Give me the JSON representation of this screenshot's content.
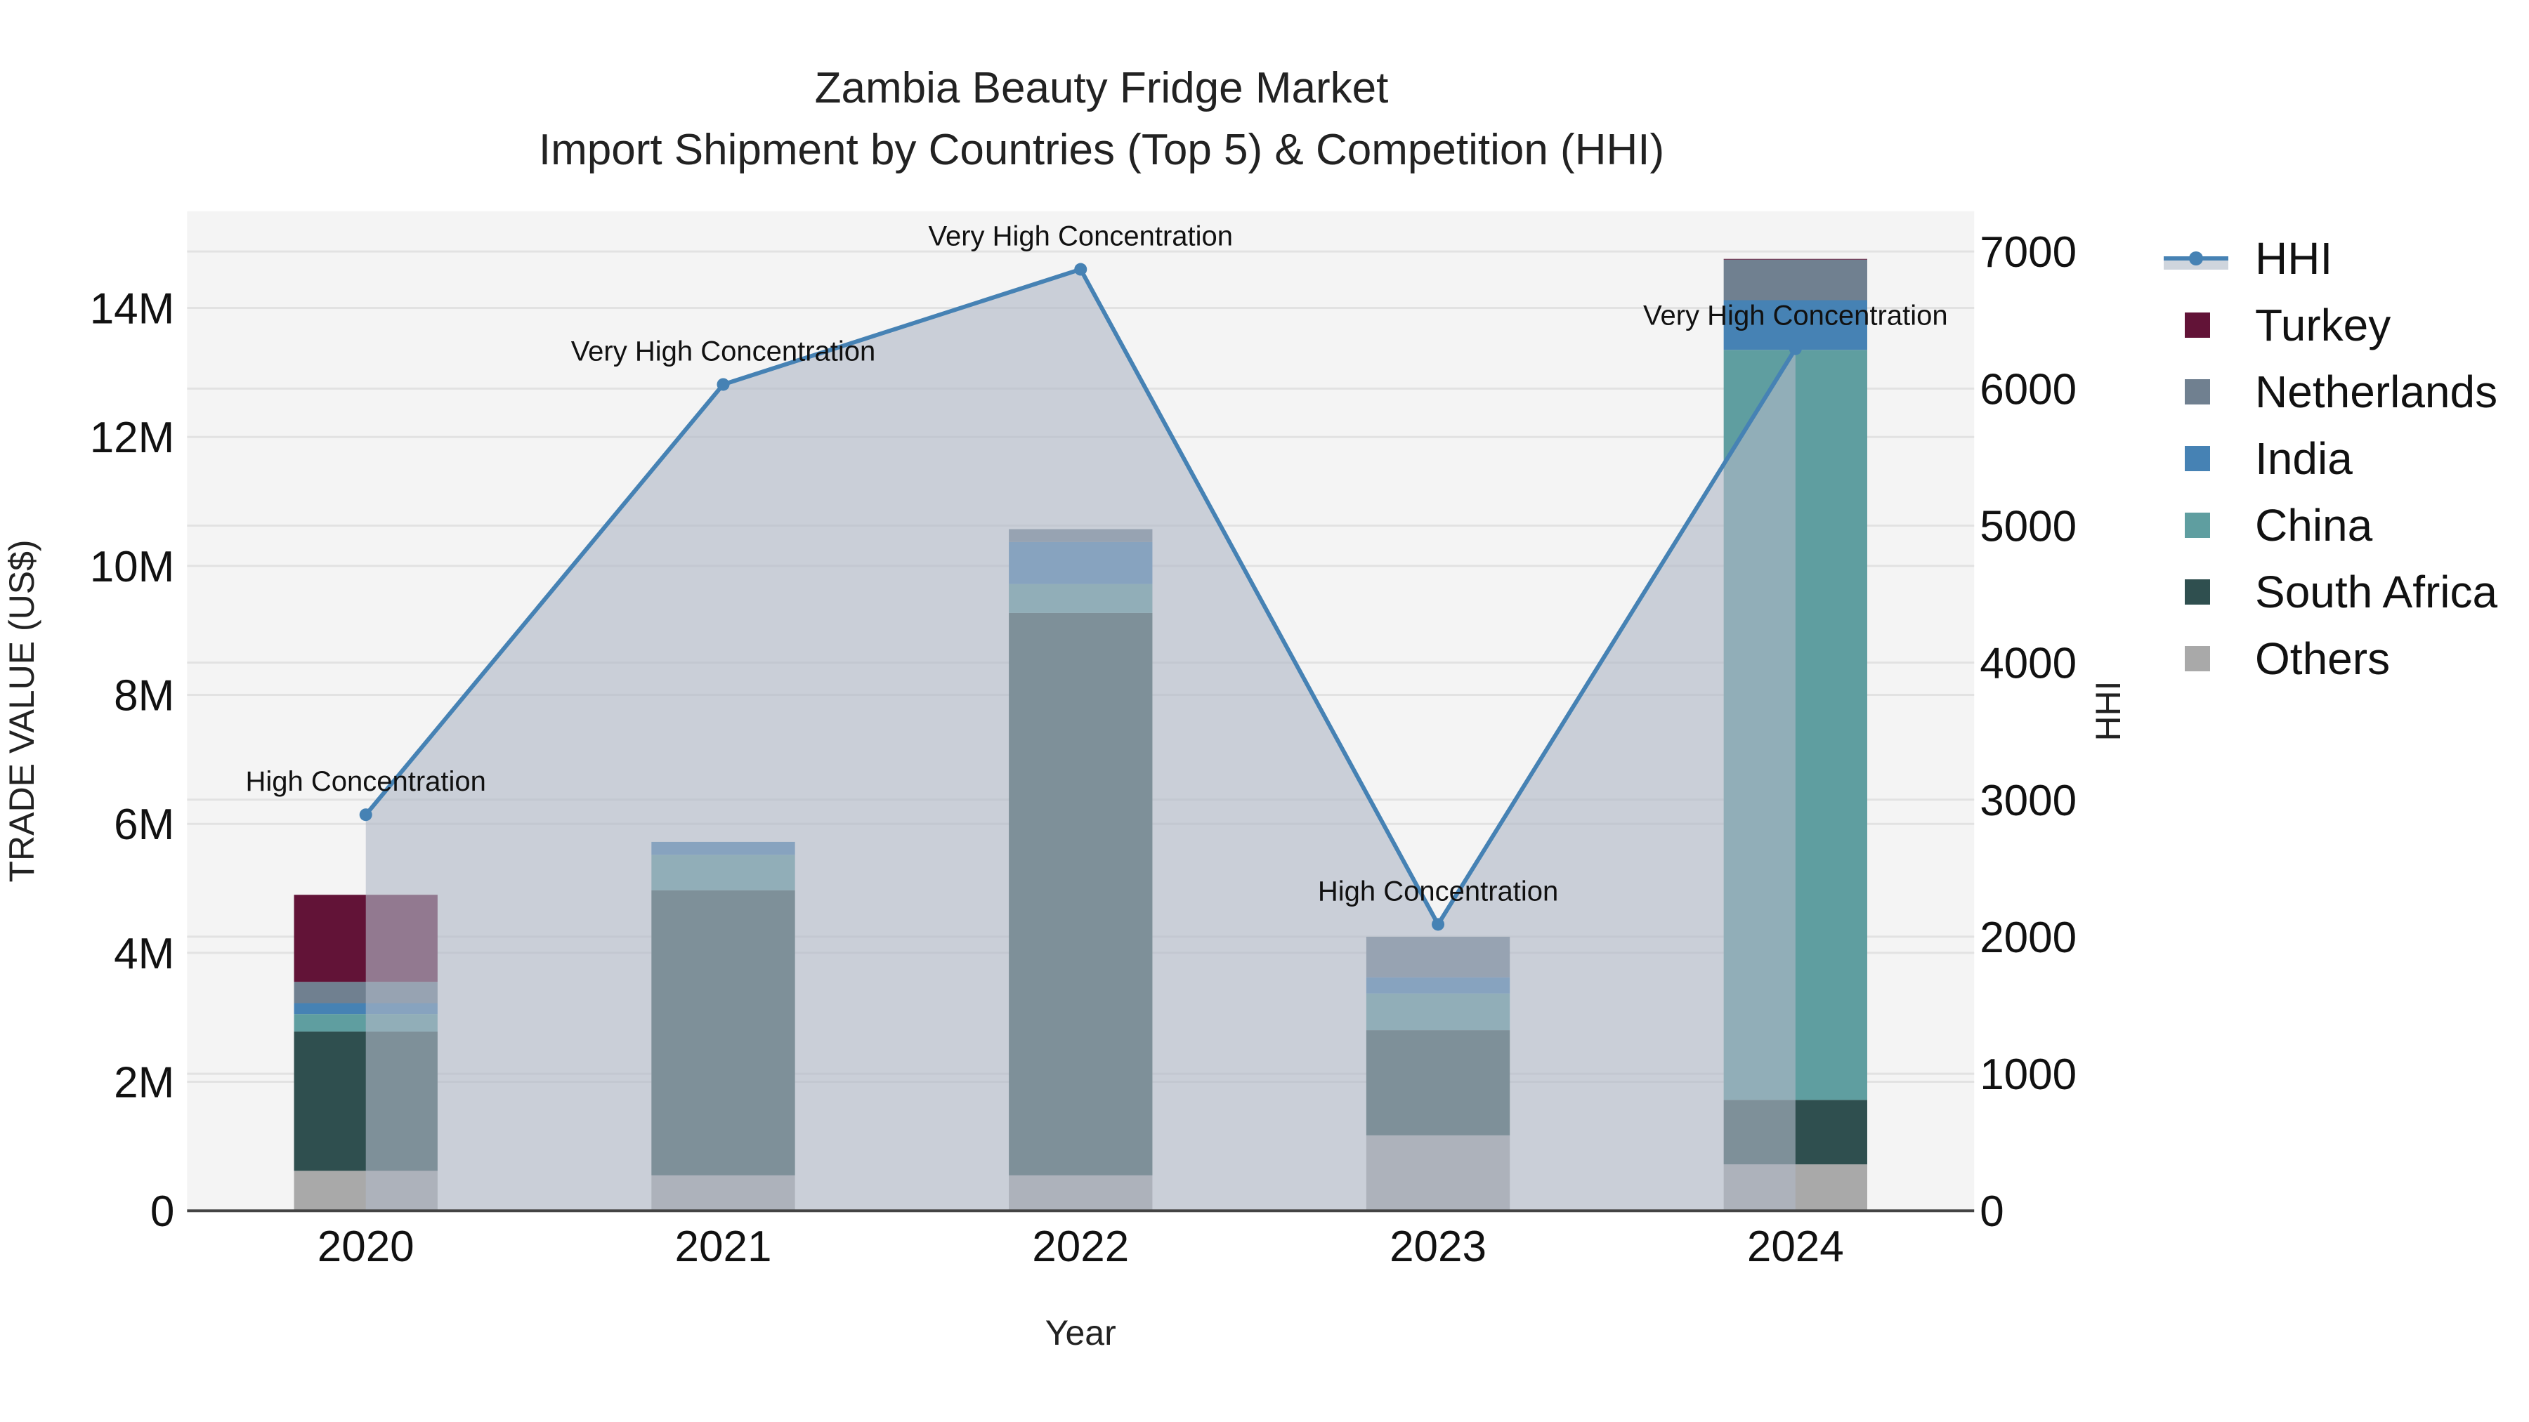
{
  "title": {
    "line1": "Zambia Beauty Fridge Market",
    "line2": "Import Shipment by Countries (Top 5) & Competition (HHI)"
  },
  "axes": {
    "x_title": "Year",
    "y_left_title": "TRADE VALUE (US$)",
    "y_right_title": "HHI",
    "y_left_ticks": [
      "0",
      "2M",
      "4M",
      "6M",
      "8M",
      "10M",
      "12M",
      "14M"
    ],
    "y_right_ticks": [
      "0",
      "1000",
      "2000",
      "3000",
      "4000",
      "5000",
      "6000",
      "7000"
    ],
    "x_ticks": [
      "2020",
      "2021",
      "2022",
      "2023",
      "2024"
    ]
  },
  "legend": [
    {
      "name": "HHI",
      "type": "line",
      "color": "#4682b4"
    },
    {
      "name": "Turkey",
      "type": "bar",
      "color": "#621337"
    },
    {
      "name": "Netherlands",
      "type": "bar",
      "color": "#708090"
    },
    {
      "name": "India",
      "type": "bar",
      "color": "#4682b4"
    },
    {
      "name": "China",
      "type": "bar",
      "color": "#5f9ea0"
    },
    {
      "name": "South Africa",
      "type": "bar",
      "color": "#2f4f4f"
    },
    {
      "name": "Others",
      "type": "bar",
      "color": "#a9a9a9"
    }
  ],
  "colors": {
    "plot_bg": "#f4f4f4",
    "grid": "#e2e2e2",
    "hhi_line": "#4682b4",
    "hhi_fill": "rgba(176,184,198,0.62)"
  },
  "chart_data": {
    "type": "bar",
    "title": "Zambia Beauty Fridge Market — Import Shipment by Countries (Top 5) & Competition (HHI)",
    "xlabel": "Year",
    "ylabel": "TRADE VALUE (US$)",
    "y2label": "HHI",
    "ylim": [
      0,
      15000000
    ],
    "y2lim": [
      0,
      7300
    ],
    "barmode": "stack",
    "categories": [
      "2020",
      "2021",
      "2022",
      "2023",
      "2024"
    ],
    "series": [
      {
        "name": "Others",
        "color": "#a9a9a9",
        "values": [
          620000,
          550000,
          550000,
          1170000,
          720000
        ]
      },
      {
        "name": "South Africa",
        "color": "#2f4f4f",
        "values": [
          2160000,
          4420000,
          8720000,
          1630000,
          1000000
        ]
      },
      {
        "name": "China",
        "color": "#5f9ea0",
        "values": [
          270000,
          550000,
          450000,
          570000,
          11630000
        ]
      },
      {
        "name": "India",
        "color": "#4682b4",
        "values": [
          170000,
          200000,
          650000,
          250000,
          770000
        ]
      },
      {
        "name": "Netherlands",
        "color": "#708090",
        "values": [
          330000,
          0,
          200000,
          630000,
          630000
        ]
      },
      {
        "name": "Turkey",
        "color": "#621337",
        "values": [
          1350000,
          0,
          0,
          0,
          10000
        ]
      }
    ],
    "line_series": {
      "name": "HHI",
      "axis": "right",
      "color": "#4682b4",
      "fill": "tozeroy",
      "values": [
        2890,
        6030,
        6870,
        2090,
        6290
      ],
      "annotations": [
        "High Concentration",
        "Very High Concentration",
        "Very High Concentration",
        "High Concentration",
        "Very High Concentration"
      ]
    },
    "grid": true,
    "legend_position": "right"
  }
}
